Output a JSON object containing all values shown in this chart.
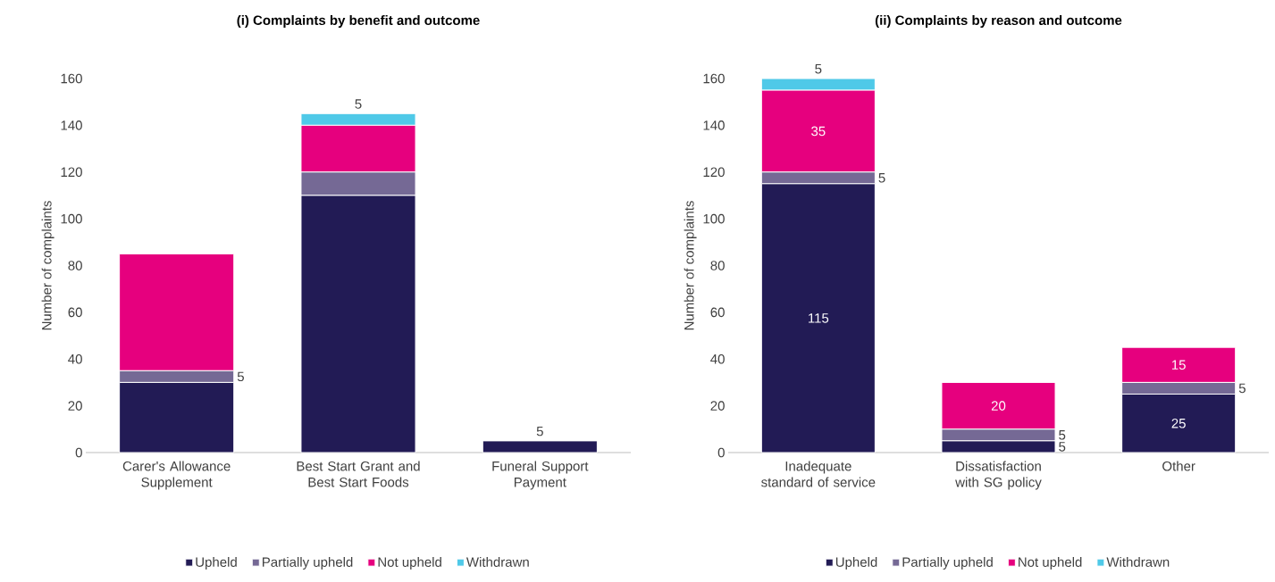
{
  "chart_data": [
    {
      "type": "bar",
      "stacked": true,
      "title": "(i) Complaints by benefit and outcome",
      "ylabel": "Number of complaints",
      "categories": [
        "Carer's Allowance Supplement",
        "Best Start Grant and Best Start Foods",
        "Funeral Support Payment"
      ],
      "ylim": [
        0,
        160
      ],
      "yticks": [
        0,
        20,
        40,
        60,
        80,
        100,
        120,
        140,
        160
      ],
      "grid": false,
      "legend": "bottom",
      "series": [
        {
          "name": "Upheld",
          "color": "#221b55",
          "values": [
            30,
            110,
            5
          ],
          "value_labels": [
            null,
            null,
            "5"
          ]
        },
        {
          "name": "Partially upheld",
          "color": "#756995",
          "values": [
            5,
            10,
            0
          ],
          "value_labels": [
            "5",
            null,
            null
          ]
        },
        {
          "name": "Not upheld",
          "color": "#e6007e",
          "values": [
            50,
            20,
            0
          ],
          "value_labels": [
            null,
            null,
            null
          ]
        },
        {
          "name": "Withdrawn",
          "color": "#4fc9e8",
          "values": [
            0,
            5,
            0
          ],
          "value_labels": [
            null,
            "5",
            null
          ]
        }
      ]
    },
    {
      "type": "bar",
      "stacked": true,
      "title": "(ii) Complaints by reason and outcome",
      "ylabel": "Number of complaints",
      "categories": [
        "Inadequate standard of service",
        "Dissatisfaction with SG policy",
        "Other"
      ],
      "ylim": [
        0,
        160
      ],
      "yticks": [
        0,
        20,
        40,
        60,
        80,
        100,
        120,
        140,
        160
      ],
      "grid": false,
      "legend": "bottom",
      "series": [
        {
          "name": "Upheld",
          "color": "#221b55",
          "values": [
            115,
            5,
            25
          ],
          "value_labels": [
            "115",
            "5",
            "25"
          ]
        },
        {
          "name": "Partially upheld",
          "color": "#756995",
          "values": [
            5,
            5,
            5
          ],
          "value_labels": [
            "5",
            "5",
            "5"
          ]
        },
        {
          "name": "Not upheld",
          "color": "#e6007e",
          "values": [
            35,
            20,
            15
          ],
          "value_labels": [
            "35",
            "20",
            "15"
          ]
        },
        {
          "name": "Withdrawn",
          "color": "#4fc9e8",
          "values": [
            5,
            0,
            0
          ],
          "value_labels": [
            "5",
            null,
            null
          ]
        }
      ]
    }
  ]
}
